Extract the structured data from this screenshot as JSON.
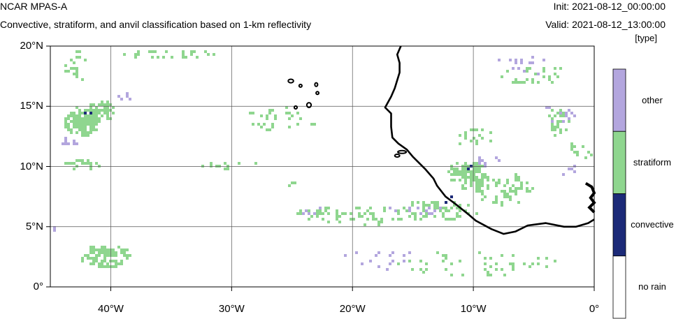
{
  "header": {
    "model": "NCAR MPAS-A",
    "subtitle": "Convective, stratiform, and anvil classification based on 1-km reflectivity",
    "init": "Init: 2021-08-12_00:00:00",
    "valid": "Valid: 2021-08-12_13:00:00",
    "units": "[type]"
  },
  "map": {
    "lat_range": [
      0,
      20
    ],
    "lon_range": [
      -45,
      0
    ],
    "lat_ticks": [
      {
        "value": 20,
        "label": "20°N"
      },
      {
        "value": 15,
        "label": "15°N"
      },
      {
        "value": 10,
        "label": "10°N"
      },
      {
        "value": 5,
        "label": "5°N"
      },
      {
        "value": 0,
        "label": "0°"
      }
    ],
    "lon_ticks": [
      {
        "value": -40,
        "label": "40°W"
      },
      {
        "value": -30,
        "label": "30°W"
      },
      {
        "value": -20,
        "label": "20°W"
      },
      {
        "value": -10,
        "label": "10°W"
      },
      {
        "value": 0,
        "label": "0°"
      }
    ],
    "gridlines": true,
    "coastline_color": "#000000",
    "category_colors": {
      "other": "#b3a6de",
      "stratiform": "#8fd68f",
      "convective": "#1c2a78",
      "no_rain": "#ffffff"
    },
    "precip_regions": [
      {
        "class": "stratiform",
        "lon": -42.5,
        "lat": 13.8,
        "rx": 1.6,
        "ry": 1.4,
        "density": 0.85
      },
      {
        "class": "stratiform",
        "lon": -41.0,
        "lat": 14.8,
        "rx": 1.2,
        "ry": 1.0,
        "density": 0.7
      },
      {
        "class": "stratiform",
        "lon": -42.5,
        "lat": 10.3,
        "rx": 1.8,
        "ry": 0.5,
        "density": 0.6
      },
      {
        "class": "stratiform",
        "lon": -40.5,
        "lat": 2.7,
        "rx": 2.2,
        "ry": 1.0,
        "density": 0.75
      },
      {
        "class": "stratiform",
        "lon": -10.5,
        "lat": 9.5,
        "rx": 1.8,
        "ry": 1.2,
        "density": 0.75
      },
      {
        "class": "stratiform",
        "lon": -13.0,
        "lat": 6.5,
        "rx": 3.5,
        "ry": 0.9,
        "density": 0.5
      },
      {
        "class": "stratiform",
        "lon": -7.5,
        "lat": 8.3,
        "rx": 2.5,
        "ry": 1.4,
        "density": 0.35
      },
      {
        "class": "stratiform",
        "lon": -3.0,
        "lat": 13.8,
        "rx": 1.0,
        "ry": 1.2,
        "density": 0.55
      },
      {
        "class": "stratiform",
        "lon": -10.0,
        "lat": 12.5,
        "rx": 2.0,
        "ry": 0.8,
        "density": 0.3
      },
      {
        "class": "stratiform",
        "lon": -5.0,
        "lat": 17.8,
        "rx": 3.0,
        "ry": 0.8,
        "density": 0.2
      },
      {
        "class": "stratiform",
        "lon": -20.0,
        "lat": 6.0,
        "rx": 5.0,
        "ry": 0.9,
        "density": 0.25
      },
      {
        "class": "stratiform",
        "lon": -10.0,
        "lat": 2.0,
        "rx": 7.0,
        "ry": 1.2,
        "density": 0.12
      },
      {
        "class": "stratiform",
        "lon": -36.0,
        "lat": 19.5,
        "rx": 5.0,
        "ry": 0.4,
        "density": 0.25
      },
      {
        "class": "stratiform",
        "lon": -43.0,
        "lat": 18.5,
        "rx": 1.0,
        "ry": 1.5,
        "density": 0.3
      },
      {
        "class": "stratiform",
        "lon": -26.0,
        "lat": 14.0,
        "rx": 3.0,
        "ry": 1.2,
        "density": 0.15
      },
      {
        "class": "stratiform",
        "lon": -30.0,
        "lat": 10.0,
        "rx": 3.0,
        "ry": 0.5,
        "density": 0.15
      },
      {
        "class": "stratiform",
        "lon": -25.0,
        "lat": 8.7,
        "rx": 0.6,
        "ry": 0.3,
        "density": 0.6
      },
      {
        "class": "stratiform",
        "lon": -23.0,
        "lat": 6.2,
        "rx": 1.5,
        "ry": 0.6,
        "density": 0.3
      },
      {
        "class": "stratiform",
        "lon": -1.0,
        "lat": 11.5,
        "rx": 1.5,
        "ry": 1.0,
        "density": 0.25
      },
      {
        "class": "other",
        "lon": -43.5,
        "lat": 12.2,
        "rx": 0.8,
        "ry": 0.6,
        "density": 0.5
      },
      {
        "class": "other",
        "lon": -9.0,
        "lat": 10.5,
        "rx": 1.5,
        "ry": 0.5,
        "density": 0.35
      },
      {
        "class": "other",
        "lon": -3.0,
        "lat": 14.5,
        "rx": 1.5,
        "ry": 0.8,
        "density": 0.25
      },
      {
        "class": "other",
        "lon": -15.0,
        "lat": 6.5,
        "rx": 2.5,
        "ry": 0.6,
        "density": 0.2
      },
      {
        "class": "other",
        "lon": -24.0,
        "lat": 6.5,
        "rx": 1.5,
        "ry": 0.6,
        "density": 0.2
      },
      {
        "class": "other",
        "lon": -18.0,
        "lat": 2.5,
        "rx": 4.0,
        "ry": 1.0,
        "density": 0.08
      },
      {
        "class": "other",
        "lon": -6.0,
        "lat": 18.5,
        "rx": 2.5,
        "ry": 1.0,
        "density": 0.12
      },
      {
        "class": "other",
        "lon": -39.0,
        "lat": 15.8,
        "rx": 1.0,
        "ry": 0.5,
        "density": 0.2
      },
      {
        "class": "other",
        "lon": -44.5,
        "lat": 5.0,
        "rx": 0.5,
        "ry": 0.5,
        "density": 0.3
      },
      {
        "class": "other",
        "lon": -2.0,
        "lat": 10.0,
        "rx": 1.2,
        "ry": 0.8,
        "density": 0.15
      },
      {
        "class": "convective",
        "lon": -42.0,
        "lat": 14.3,
        "rx": 0.7,
        "ry": 0.6,
        "density": 0.12
      },
      {
        "class": "convective",
        "lon": -10.3,
        "lat": 9.8,
        "rx": 0.6,
        "ry": 0.5,
        "density": 0.15
      },
      {
        "class": "convective",
        "lon": -12.3,
        "lat": 7.4,
        "rx": 0.4,
        "ry": 0.4,
        "density": 0.25
      },
      {
        "class": "convective",
        "lon": -40.2,
        "lat": 3.0,
        "rx": 0.8,
        "ry": 0.5,
        "density": 0.05
      },
      {
        "class": "convective",
        "lon": -3.0,
        "lat": 13.2,
        "rx": 0.5,
        "ry": 0.5,
        "density": 0.1
      },
      {
        "class": "convective",
        "lon": -5.5,
        "lat": 5.5,
        "rx": 1.5,
        "ry": 0.5,
        "density": 0.03
      }
    ],
    "islands": [
      {
        "lon": -25.1,
        "lat": 17.1,
        "rx": 0.22,
        "ry": 0.15
      },
      {
        "lon": -24.3,
        "lat": 16.7,
        "rx": 0.12,
        "ry": 0.08
      },
      {
        "lon": -23.0,
        "lat": 16.8,
        "rx": 0.08,
        "ry": 0.15
      },
      {
        "lon": -22.9,
        "lat": 16.1,
        "rx": 0.1,
        "ry": 0.1
      },
      {
        "lon": -24.7,
        "lat": 14.9,
        "rx": 0.12,
        "ry": 0.12
      },
      {
        "lon": -23.6,
        "lat": 15.1,
        "rx": 0.18,
        "ry": 0.2
      },
      {
        "lon": -15.9,
        "lat": 11.2,
        "rx": 0.35,
        "ry": 0.08
      },
      {
        "lon": -16.3,
        "lat": 10.9,
        "rx": 0.2,
        "ry": 0.08
      }
    ],
    "coastline": [
      [
        -16.0,
        20.0
      ],
      [
        -16.3,
        19.3
      ],
      [
        -16.1,
        18.6
      ],
      [
        -16.1,
        17.8
      ],
      [
        -16.5,
        16.5
      ],
      [
        -16.8,
        15.8
      ],
      [
        -17.3,
        14.9
      ],
      [
        -16.8,
        14.4
      ],
      [
        -16.8,
        13.3
      ],
      [
        -16.7,
        12.4
      ],
      [
        -16.2,
        11.9
      ],
      [
        -15.5,
        11.4
      ],
      [
        -15.0,
        10.8
      ],
      [
        -14.6,
        10.4
      ],
      [
        -14.0,
        9.8
      ],
      [
        -13.3,
        9.0
      ],
      [
        -13.0,
        8.4
      ],
      [
        -12.3,
        7.5
      ],
      [
        -11.5,
        6.9
      ],
      [
        -10.5,
        6.1
      ],
      [
        -9.8,
        5.5
      ],
      [
        -8.5,
        4.8
      ],
      [
        -7.5,
        4.4
      ],
      [
        -6.5,
        4.6
      ],
      [
        -5.5,
        5.1
      ],
      [
        -4.0,
        5.3
      ],
      [
        -2.5,
        5.0
      ],
      [
        -1.5,
        5.0
      ],
      [
        -0.5,
        5.3
      ],
      [
        0.0,
        5.6
      ]
    ],
    "coastline_fragments": [
      [
        [
          -0.7,
          8.6
        ],
        [
          -0.2,
          8.3
        ],
        [
          0.0,
          7.8
        ],
        [
          -0.3,
          7.4
        ],
        [
          0.0,
          7.0
        ],
        [
          -0.4,
          6.6
        ],
        [
          0.0,
          6.2
        ]
      ]
    ]
  },
  "colorbar": {
    "title": "[type]",
    "categories": [
      {
        "label": "other",
        "color": "#b3a6de"
      },
      {
        "label": "stratiform",
        "color": "#8fd68f"
      },
      {
        "label": "convective",
        "color": "#1c2a78"
      },
      {
        "label": "no rain",
        "color": "#ffffff"
      }
    ]
  }
}
